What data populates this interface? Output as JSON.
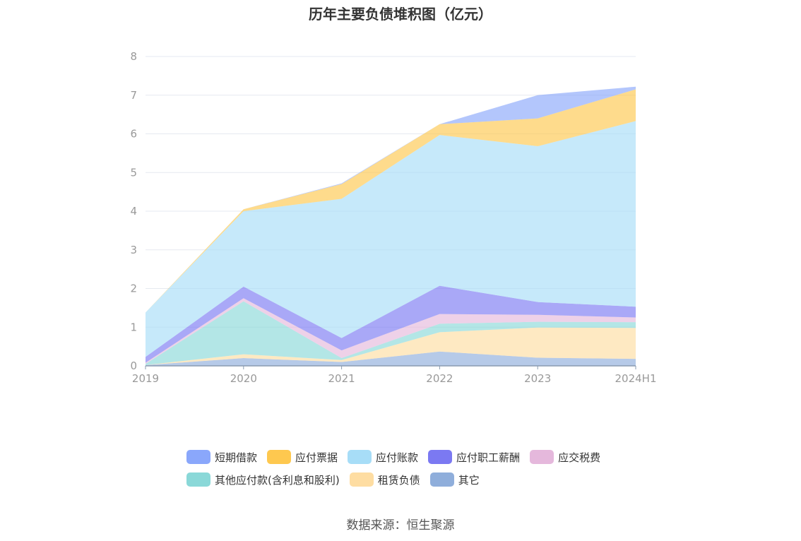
{
  "chart_data": {
    "type": "area",
    "stacked": true,
    "title": "历年主要负债堆积图（亿元）",
    "categories": [
      "2019",
      "2020",
      "2021",
      "2022",
      "2023",
      "2024H1"
    ],
    "ylim": [
      0,
      8
    ],
    "yticks": [
      "0",
      "1",
      "2",
      "3",
      "4",
      "5",
      "6",
      "7",
      "8"
    ],
    "grid": true,
    "legend_position": "bottom",
    "series": [
      {
        "name": "其它",
        "color": "#8faedb",
        "values": [
          0.02,
          0.2,
          0.1,
          0.37,
          0.21,
          0.18
        ]
      },
      {
        "name": "租赁负债",
        "color": "#fedda2",
        "values": [
          0.0,
          0.1,
          0.05,
          0.5,
          0.78,
          0.8
        ]
      },
      {
        "name": "其他应付款(含利息和股利)",
        "color": "#8ad8d8",
        "values": [
          0.03,
          1.37,
          0.05,
          0.22,
          0.15,
          0.15
        ]
      },
      {
        "name": "应交税费",
        "color": "#e5b8dc",
        "values": [
          0.03,
          0.08,
          0.2,
          0.25,
          0.18,
          0.12
        ]
      },
      {
        "name": "应付职工薪酬",
        "color": "#7b79f2",
        "values": [
          0.15,
          0.3,
          0.32,
          0.73,
          0.33,
          0.28
        ]
      },
      {
        "name": "应付账款",
        "color": "#a7ddf7",
        "values": [
          1.15,
          1.95,
          3.6,
          3.9,
          4.03,
          4.8
        ]
      },
      {
        "name": "应付票据",
        "color": "#fec84f",
        "values": [
          0.0,
          0.05,
          0.38,
          0.28,
          0.72,
          0.82
        ]
      },
      {
        "name": "短期借款",
        "color": "#8aa7fb",
        "values": [
          0.0,
          0.0,
          0.02,
          0.0,
          0.6,
          0.07
        ]
      }
    ]
  },
  "legend": {
    "rows": [
      [
        {
          "label": "短期借款",
          "color": "#8aa7fb"
        },
        {
          "label": "应付票据",
          "color": "#fec84f"
        },
        {
          "label": "应付账款",
          "color": "#a7ddf7"
        },
        {
          "label": "应付职工薪酬",
          "color": "#7b79f2"
        },
        {
          "label": "应交税费",
          "color": "#e5b8dc"
        }
      ],
      [
        {
          "label": "其他应付款(含利息和股利)",
          "color": "#8ad8d8"
        },
        {
          "label": "租赁负债",
          "color": "#fedda2"
        },
        {
          "label": "其它",
          "color": "#8faedb"
        }
      ]
    ]
  },
  "source": "数据来源：恒生聚源"
}
